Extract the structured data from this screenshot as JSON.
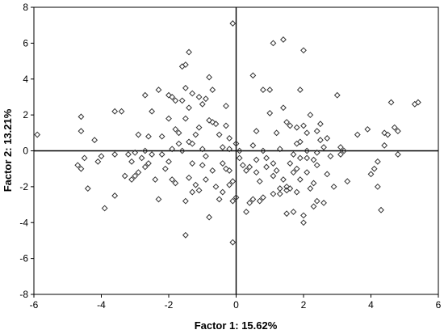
{
  "chart_data": {
    "type": "scatter",
    "title": "",
    "xlabel": "Factor 1: 15.62%",
    "ylabel": "Factor 2: 13.21%",
    "xlim": [
      -6,
      6
    ],
    "ylim": [
      -8,
      8
    ],
    "xticks": [
      -6,
      -4,
      -2,
      0,
      2,
      4,
      6
    ],
    "yticks": [
      -8,
      -6,
      -4,
      -2,
      0,
      2,
      4,
      6,
      8
    ],
    "grid": false,
    "reference_lines": {
      "x": 0,
      "y": 0
    },
    "marker": "diamond-open",
    "colors": {
      "marker": "#333333",
      "axis": "#000000",
      "background": "#ffffff"
    },
    "points": [
      [
        -5.9,
        0.9
      ],
      [
        -4.6,
        1.9
      ],
      [
        -4.6,
        1.1
      ],
      [
        -4.7,
        -0.8
      ],
      [
        -4.6,
        -1.0
      ],
      [
        -4.5,
        -0.4
      ],
      [
        -4.4,
        -2.1
      ],
      [
        -4.2,
        0.6
      ],
      [
        -4.1,
        -0.6
      ],
      [
        -4.0,
        -0.3
      ],
      [
        -3.9,
        -3.2
      ],
      [
        -3.6,
        -0.2
      ],
      [
        -3.6,
        -2.5
      ],
      [
        -3.6,
        2.2
      ],
      [
        -3.4,
        2.2
      ],
      [
        -3.3,
        -1.4
      ],
      [
        -3.2,
        -0.2
      ],
      [
        -3.1,
        -0.6
      ],
      [
        -3.1,
        -1.6
      ],
      [
        -3.0,
        -1.4
      ],
      [
        -3.0,
        -0.1
      ],
      [
        -2.9,
        -1.2
      ],
      [
        -2.9,
        0.9
      ],
      [
        -2.8,
        -0.4
      ],
      [
        -2.7,
        0.0
      ],
      [
        -2.7,
        -0.9
      ],
      [
        -2.7,
        3.1
      ],
      [
        -2.6,
        -0.7
      ],
      [
        -2.6,
        0.8
      ],
      [
        -2.5,
        2.2
      ],
      [
        -2.5,
        -0.2
      ],
      [
        -2.4,
        -1.6
      ],
      [
        -2.3,
        3.4
      ],
      [
        -2.3,
        -2.7
      ],
      [
        -2.2,
        0.8
      ],
      [
        -2.2,
        -0.2
      ],
      [
        -2.1,
        -1.0
      ],
      [
        -2.0,
        1.8
      ],
      [
        -2.0,
        3.1
      ],
      [
        -2.0,
        -0.6
      ],
      [
        -1.9,
        3.0
      ],
      [
        -1.9,
        0.1
      ],
      [
        -1.9,
        -1.6
      ],
      [
        -1.8,
        1.2
      ],
      [
        -1.8,
        2.8
      ],
      [
        -1.8,
        -1.8
      ],
      [
        -1.7,
        1.0
      ],
      [
        -1.7,
        0.4
      ],
      [
        -1.6,
        4.7
      ],
      [
        -1.6,
        2.8
      ],
      [
        -1.6,
        0.0
      ],
      [
        -1.5,
        4.8
      ],
      [
        -1.5,
        3.5
      ],
      [
        -1.5,
        1.8
      ],
      [
        -1.5,
        -2.8
      ],
      [
        -1.5,
        -4.7
      ],
      [
        -1.4,
        5.5
      ],
      [
        -1.4,
        2.4
      ],
      [
        -1.4,
        0.5
      ],
      [
        -1.4,
        -1.5
      ],
      [
        -1.3,
        3.2
      ],
      [
        -1.3,
        0.4
      ],
      [
        -1.3,
        -0.7
      ],
      [
        -1.3,
        -2.3
      ],
      [
        -1.2,
        0.9
      ],
      [
        -1.2,
        -1.9
      ],
      [
        -1.1,
        3.0
      ],
      [
        -1.1,
        1.3
      ],
      [
        -1.1,
        -2.2
      ],
      [
        -1.0,
        2.6
      ],
      [
        -1.0,
        0.1
      ],
      [
        -1.0,
        -0.8
      ],
      [
        -0.9,
        2.9
      ],
      [
        -0.9,
        -0.3
      ],
      [
        -0.9,
        -1.6
      ],
      [
        -0.8,
        4.1
      ],
      [
        -0.8,
        1.7
      ],
      [
        -0.8,
        -3.7
      ],
      [
        -0.7,
        1.6
      ],
      [
        -0.7,
        3.4
      ],
      [
        -0.7,
        -1.1
      ],
      [
        -0.6,
        1.5
      ],
      [
        -0.6,
        -2.0
      ],
      [
        -0.5,
        0.9
      ],
      [
        -0.5,
        -2.7
      ],
      [
        -0.4,
        0.2
      ],
      [
        -0.4,
        -0.7
      ],
      [
        -0.4,
        -2.3
      ],
      [
        -0.3,
        2.5
      ],
      [
        -0.3,
        1.4
      ],
      [
        -0.3,
        -1.0
      ],
      [
        -0.2,
        0.7
      ],
      [
        -0.2,
        0.1
      ],
      [
        -0.2,
        -1.1
      ],
      [
        -0.2,
        -1.9
      ],
      [
        -0.1,
        7.1
      ],
      [
        -0.1,
        -1.7
      ],
      [
        -0.1,
        -2.8
      ],
      [
        -0.1,
        -5.1
      ],
      [
        0.0,
        -2.6
      ],
      [
        0.0,
        0.4
      ],
      [
        0.1,
        -0.4
      ],
      [
        0.1,
        0.0
      ],
      [
        0.2,
        -0.8
      ],
      [
        0.3,
        -1.1
      ],
      [
        0.3,
        -3.4
      ],
      [
        0.4,
        -0.9
      ],
      [
        0.4,
        -2.9
      ],
      [
        0.5,
        4.2
      ],
      [
        0.5,
        0.3
      ],
      [
        0.5,
        -2.7
      ],
      [
        0.6,
        -0.5
      ],
      [
        0.6,
        -1.2
      ],
      [
        0.6,
        1.1
      ],
      [
        0.7,
        -1.7
      ],
      [
        0.7,
        -2.8
      ],
      [
        0.8,
        3.4
      ],
      [
        0.8,
        0.0
      ],
      [
        0.8,
        -2.6
      ],
      [
        0.9,
        -0.4
      ],
      [
        0.9,
        -0.9
      ],
      [
        1.0,
        3.4
      ],
      [
        1.0,
        2.1
      ],
      [
        1.1,
        -1.4
      ],
      [
        1.1,
        -2.4
      ],
      [
        1.1,
        -0.7
      ],
      [
        1.1,
        6.0
      ],
      [
        1.2,
        1.0
      ],
      [
        1.2,
        -1.1
      ],
      [
        1.3,
        -2.1
      ],
      [
        1.3,
        -2.4
      ],
      [
        1.3,
        0.1
      ],
      [
        1.4,
        6.2
      ],
      [
        1.4,
        2.4
      ],
      [
        1.4,
        -1.6
      ],
      [
        1.5,
        1.6
      ],
      [
        1.5,
        -2.0
      ],
      [
        1.5,
        -2.2
      ],
      [
        1.5,
        -3.5
      ],
      [
        1.6,
        1.4
      ],
      [
        1.6,
        -0.7
      ],
      [
        1.6,
        -2.1
      ],
      [
        1.7,
        -1.2
      ],
      [
        1.7,
        -3.4
      ],
      [
        1.7,
        -0.2
      ],
      [
        1.8,
        1.3
      ],
      [
        1.8,
        0.4
      ],
      [
        1.8,
        -1.0
      ],
      [
        1.8,
        -2.3
      ],
      [
        1.9,
        3.4
      ],
      [
        1.9,
        0.5
      ],
      [
        1.9,
        -0.4
      ],
      [
        1.9,
        -1.6
      ],
      [
        2.0,
        5.6
      ],
      [
        2.0,
        1.4
      ],
      [
        2.0,
        -4.0
      ],
      [
        2.0,
        -3.6
      ],
      [
        2.1,
        1.0
      ],
      [
        2.1,
        0.0
      ],
      [
        2.1,
        -0.4
      ],
      [
        2.1,
        -1.2
      ],
      [
        2.2,
        2.0
      ],
      [
        2.2,
        -2.1
      ],
      [
        2.3,
        -0.5
      ],
      [
        2.3,
        -1.8
      ],
      [
        2.3,
        -3.1
      ],
      [
        2.4,
        1.1
      ],
      [
        2.4,
        -0.1
      ],
      [
        2.4,
        -0.8
      ],
      [
        2.4,
        -2.8
      ],
      [
        2.5,
        1.5
      ],
      [
        2.5,
        0.6
      ],
      [
        2.6,
        0.2
      ],
      [
        2.6,
        -2.9
      ],
      [
        2.7,
        0.7
      ],
      [
        2.7,
        -1.3
      ],
      [
        2.8,
        -0.3
      ],
      [
        2.9,
        -2.0
      ],
      [
        3.0,
        3.1
      ],
      [
        3.1,
        0.2
      ],
      [
        3.1,
        -0.2
      ],
      [
        3.2,
        0.0
      ],
      [
        3.3,
        -1.7
      ],
      [
        3.6,
        0.9
      ],
      [
        3.9,
        1.2
      ],
      [
        4.0,
        -1.3
      ],
      [
        4.1,
        -1.0
      ],
      [
        4.2,
        -0.6
      ],
      [
        4.2,
        -2.0
      ],
      [
        4.3,
        -3.3
      ],
      [
        4.4,
        0.3
      ],
      [
        4.4,
        1.0
      ],
      [
        4.5,
        0.9
      ],
      [
        4.6,
        2.7
      ],
      [
        4.7,
        1.3
      ],
      [
        4.8,
        1.1
      ],
      [
        4.8,
        -0.2
      ],
      [
        5.3,
        2.6
      ],
      [
        5.4,
        2.7
      ]
    ]
  }
}
